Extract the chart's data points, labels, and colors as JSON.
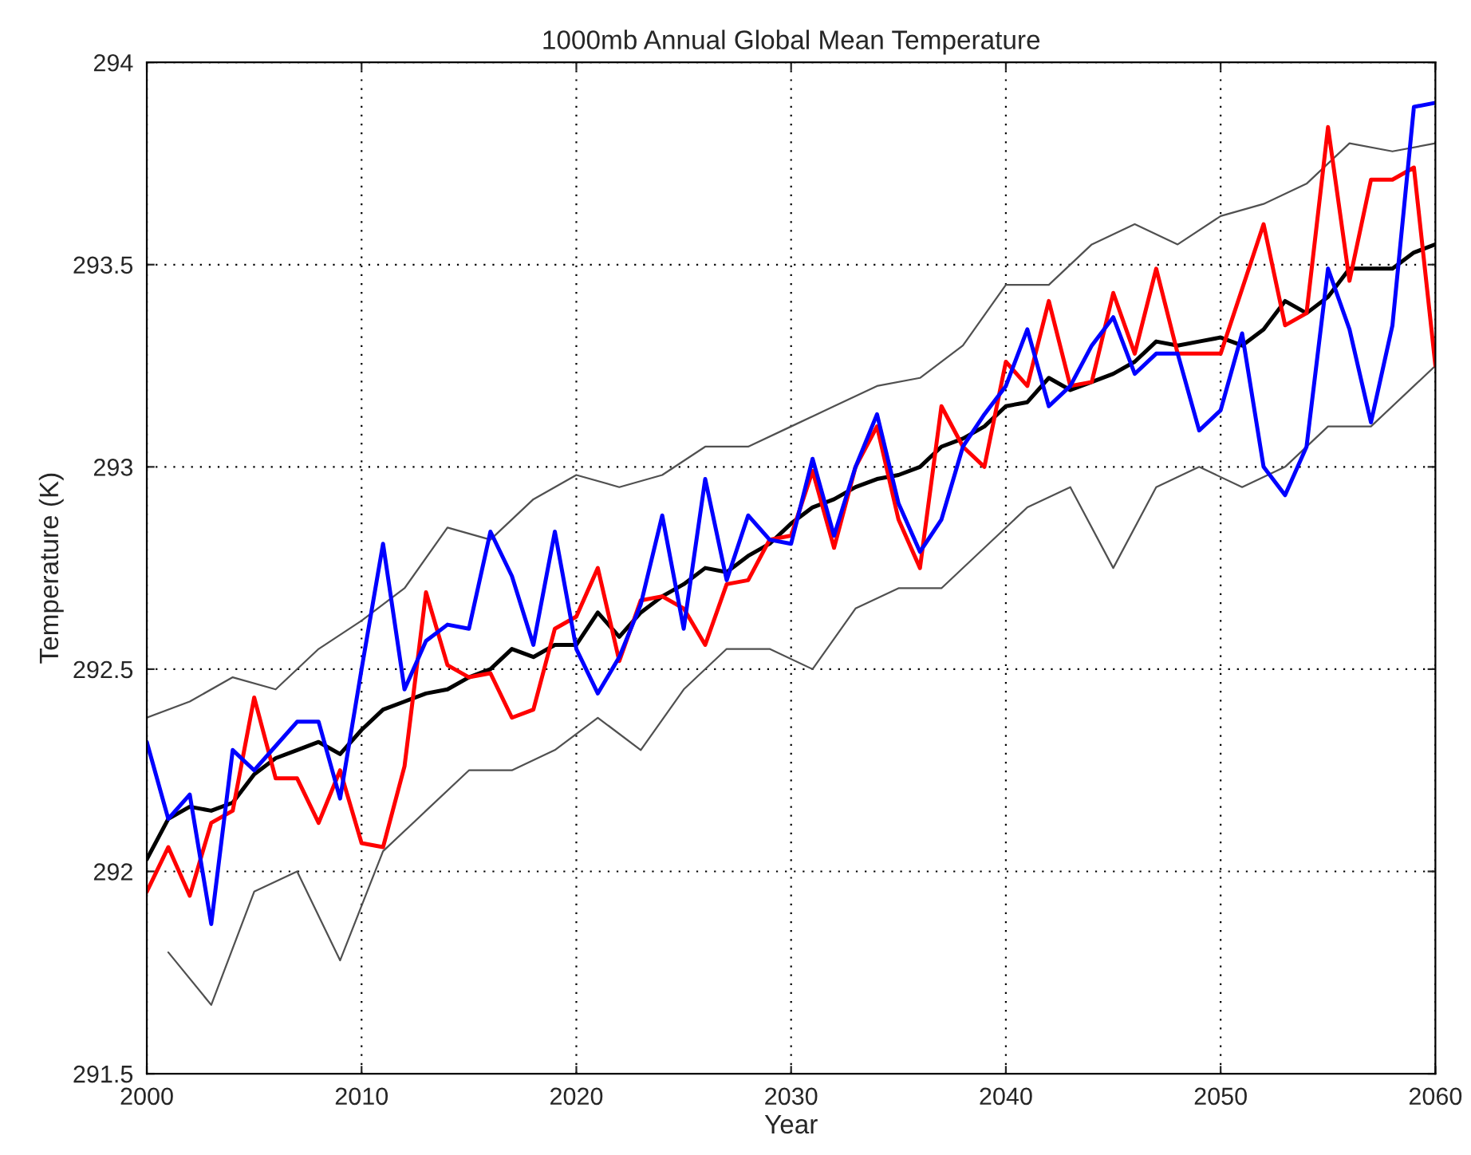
{
  "chart_data": {
    "type": "line",
    "title": "1000mb Annual Global Mean Temperature",
    "xlabel": "Year",
    "ylabel": "Temperature (K)",
    "x": [
      2000,
      2001,
      2002,
      2003,
      2004,
      2005,
      2006,
      2007,
      2008,
      2009,
      2010,
      2011,
      2012,
      2013,
      2014,
      2015,
      2016,
      2017,
      2018,
      2019,
      2020,
      2021,
      2022,
      2023,
      2024,
      2025,
      2026,
      2027,
      2028,
      2029,
      2030,
      2031,
      2032,
      2033,
      2034,
      2035,
      2036,
      2037,
      2038,
      2039,
      2040,
      2041,
      2042,
      2043,
      2044,
      2045,
      2046,
      2047,
      2048,
      2049,
      2050,
      2051,
      2052,
      2053,
      2054,
      2055,
      2056,
      2057,
      2058,
      2059,
      2060
    ],
    "series": [
      {
        "color": "#505050",
        "x": [
          2000,
          2002,
          2004,
          2006,
          2008,
          2010,
          2012,
          2014,
          2016,
          2018,
          2020,
          2022,
          2024,
          2026,
          2028,
          2030,
          2032,
          2034,
          2036,
          2038,
          2040,
          2042,
          2044,
          2046,
          2048,
          2050,
          2052,
          2054,
          2056,
          2058,
          2060
        ],
        "values": [
          292.38,
          292.42,
          292.48,
          292.45,
          292.55,
          292.62,
          292.7,
          292.85,
          292.82,
          292.92,
          292.98,
          292.95,
          292.98,
          293.05,
          293.05,
          293.1,
          293.15,
          293.2,
          293.22,
          293.3,
          293.45,
          293.45,
          293.55,
          293.6,
          293.55,
          293.62,
          293.65,
          293.7,
          293.8,
          293.78,
          293.8
        ]
      },
      {
        "color": "#505050",
        "x": [
          2001,
          2003,
          2005,
          2007,
          2009,
          2011,
          2013,
          2015,
          2017,
          2019,
          2021,
          2023,
          2025,
          2027,
          2029,
          2031,
          2033,
          2035,
          2037,
          2039,
          2041,
          2043,
          2045,
          2047,
          2049,
          2051,
          2053,
          2055,
          2057,
          2059,
          2060
        ],
        "values": [
          291.8,
          291.67,
          291.95,
          292.0,
          291.78,
          292.05,
          292.15,
          292.25,
          292.25,
          292.3,
          292.38,
          292.3,
          292.45,
          292.55,
          292.55,
          292.5,
          292.65,
          292.7,
          292.7,
          292.8,
          292.9,
          292.95,
          292.75,
          292.95,
          293.0,
          292.95,
          293.0,
          293.1,
          293.1,
          293.2,
          293.25
        ]
      },
      {
        "color": "#000000",
        "values": [
          292.03,
          292.13,
          292.16,
          292.15,
          292.17,
          292.24,
          292.28,
          292.3,
          292.32,
          292.29,
          292.35,
          292.4,
          292.42,
          292.44,
          292.45,
          292.48,
          292.5,
          292.55,
          292.53,
          292.56,
          292.56,
          292.64,
          292.58,
          292.64,
          292.68,
          292.71,
          292.75,
          292.74,
          292.78,
          292.81,
          292.86,
          292.9,
          292.92,
          292.95,
          292.97,
          292.98,
          293.0,
          293.05,
          293.07,
          293.1,
          293.15,
          293.16,
          293.22,
          293.19,
          293.21,
          293.23,
          293.26,
          293.31,
          293.3,
          293.31,
          293.32,
          293.3,
          293.34,
          293.41,
          293.38,
          293.42,
          293.49,
          293.49,
          293.49,
          293.53,
          293.55
        ]
      },
      {
        "color": "#ff0000",
        "values": [
          291.95,
          292.06,
          291.94,
          292.12,
          292.15,
          292.43,
          292.23,
          292.23,
          292.12,
          292.25,
          292.07,
          292.06,
          292.26,
          292.69,
          292.51,
          292.48,
          292.49,
          292.38,
          292.4,
          292.6,
          292.63,
          292.75,
          292.52,
          292.67,
          292.68,
          292.65,
          292.56,
          292.71,
          292.72,
          292.82,
          292.83,
          292.99,
          292.8,
          293.0,
          293.1,
          292.87,
          292.75,
          293.15,
          293.05,
          293.0,
          293.26,
          293.2,
          293.41,
          293.2,
          293.21,
          293.43,
          293.28,
          293.49,
          293.28,
          293.28,
          293.28,
          293.44,
          293.6,
          293.35,
          293.38,
          293.84,
          293.46,
          293.71,
          293.71,
          293.74,
          293.25
        ]
      },
      {
        "color": "#0000ff",
        "values": [
          292.32,
          292.13,
          292.19,
          291.87,
          292.3,
          292.25,
          292.31,
          292.37,
          292.37,
          292.18,
          292.5,
          292.81,
          292.45,
          292.57,
          292.61,
          292.6,
          292.84,
          292.73,
          292.56,
          292.84,
          292.55,
          292.44,
          292.53,
          292.66,
          292.88,
          292.6,
          292.97,
          292.72,
          292.88,
          292.82,
          292.81,
          293.02,
          292.83,
          293.0,
          293.13,
          292.91,
          292.79,
          292.87,
          293.05,
          293.13,
          293.2,
          293.34,
          293.15,
          293.2,
          293.3,
          293.37,
          293.23,
          293.28,
          293.28,
          293.09,
          293.14,
          293.33,
          293.0,
          292.93,
          293.05,
          293.49,
          293.34,
          293.11,
          293.35,
          293.89,
          293.9
        ]
      }
    ],
    "xlim": [
      2000,
      2060
    ],
    "xticks": [
      2000,
      2010,
      2020,
      2030,
      2040,
      2050,
      2060
    ],
    "ylim": [
      291.5,
      294
    ],
    "yticks": [
      291.5,
      292,
      292.5,
      293,
      293.5,
      294
    ],
    "grid": true
  }
}
